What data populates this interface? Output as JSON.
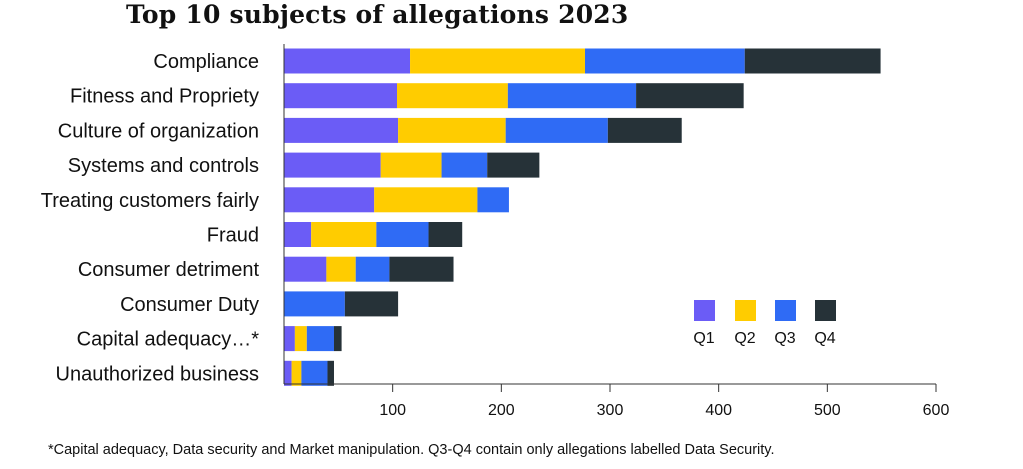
{
  "chart_data": {
    "type": "bar",
    "orientation": "horizontal",
    "stacked": true,
    "title": "Top 10 subjects of allegations 2023",
    "categories": [
      "Compliance",
      "Fitness and Propriety",
      "Culture of organization",
      "Systems and controls",
      "Treating customers fairly",
      "Fraud",
      "Consumer detriment",
      "Consumer Duty",
      "Capital adequacy…*",
      "Unauthorized business"
    ],
    "series": [
      {
        "name": "Q1",
        "color": "#6b5cf6",
        "values": [
          116,
          104,
          105,
          89,
          83,
          25,
          39,
          0,
          10,
          7
        ]
      },
      {
        "name": "Q2",
        "color": "#ffcc00",
        "values": [
          161,
          102,
          99,
          56,
          95,
          60,
          27,
          0,
          11,
          9
        ]
      },
      {
        "name": "Q3",
        "color": "#2f6bf5",
        "values": [
          147,
          118,
          94,
          42,
          29,
          48,
          31,
          56,
          25,
          24
        ]
      },
      {
        "name": "Q4",
        "color": "#263238",
        "values": [
          125,
          99,
          68,
          48,
          0,
          31,
          59,
          49,
          7,
          6
        ]
      }
    ],
    "xlim": [
      0,
      600
    ],
    "xticks": [
      100,
      200,
      300,
      400,
      500,
      600
    ],
    "xlabel": "",
    "ylabel": "",
    "grid": false,
    "legend_position": "bottom-right",
    "footnote": "*Capital adequacy, Data security and Market manipulation. Q3-Q4 contain only allegations labelled Data Security."
  }
}
